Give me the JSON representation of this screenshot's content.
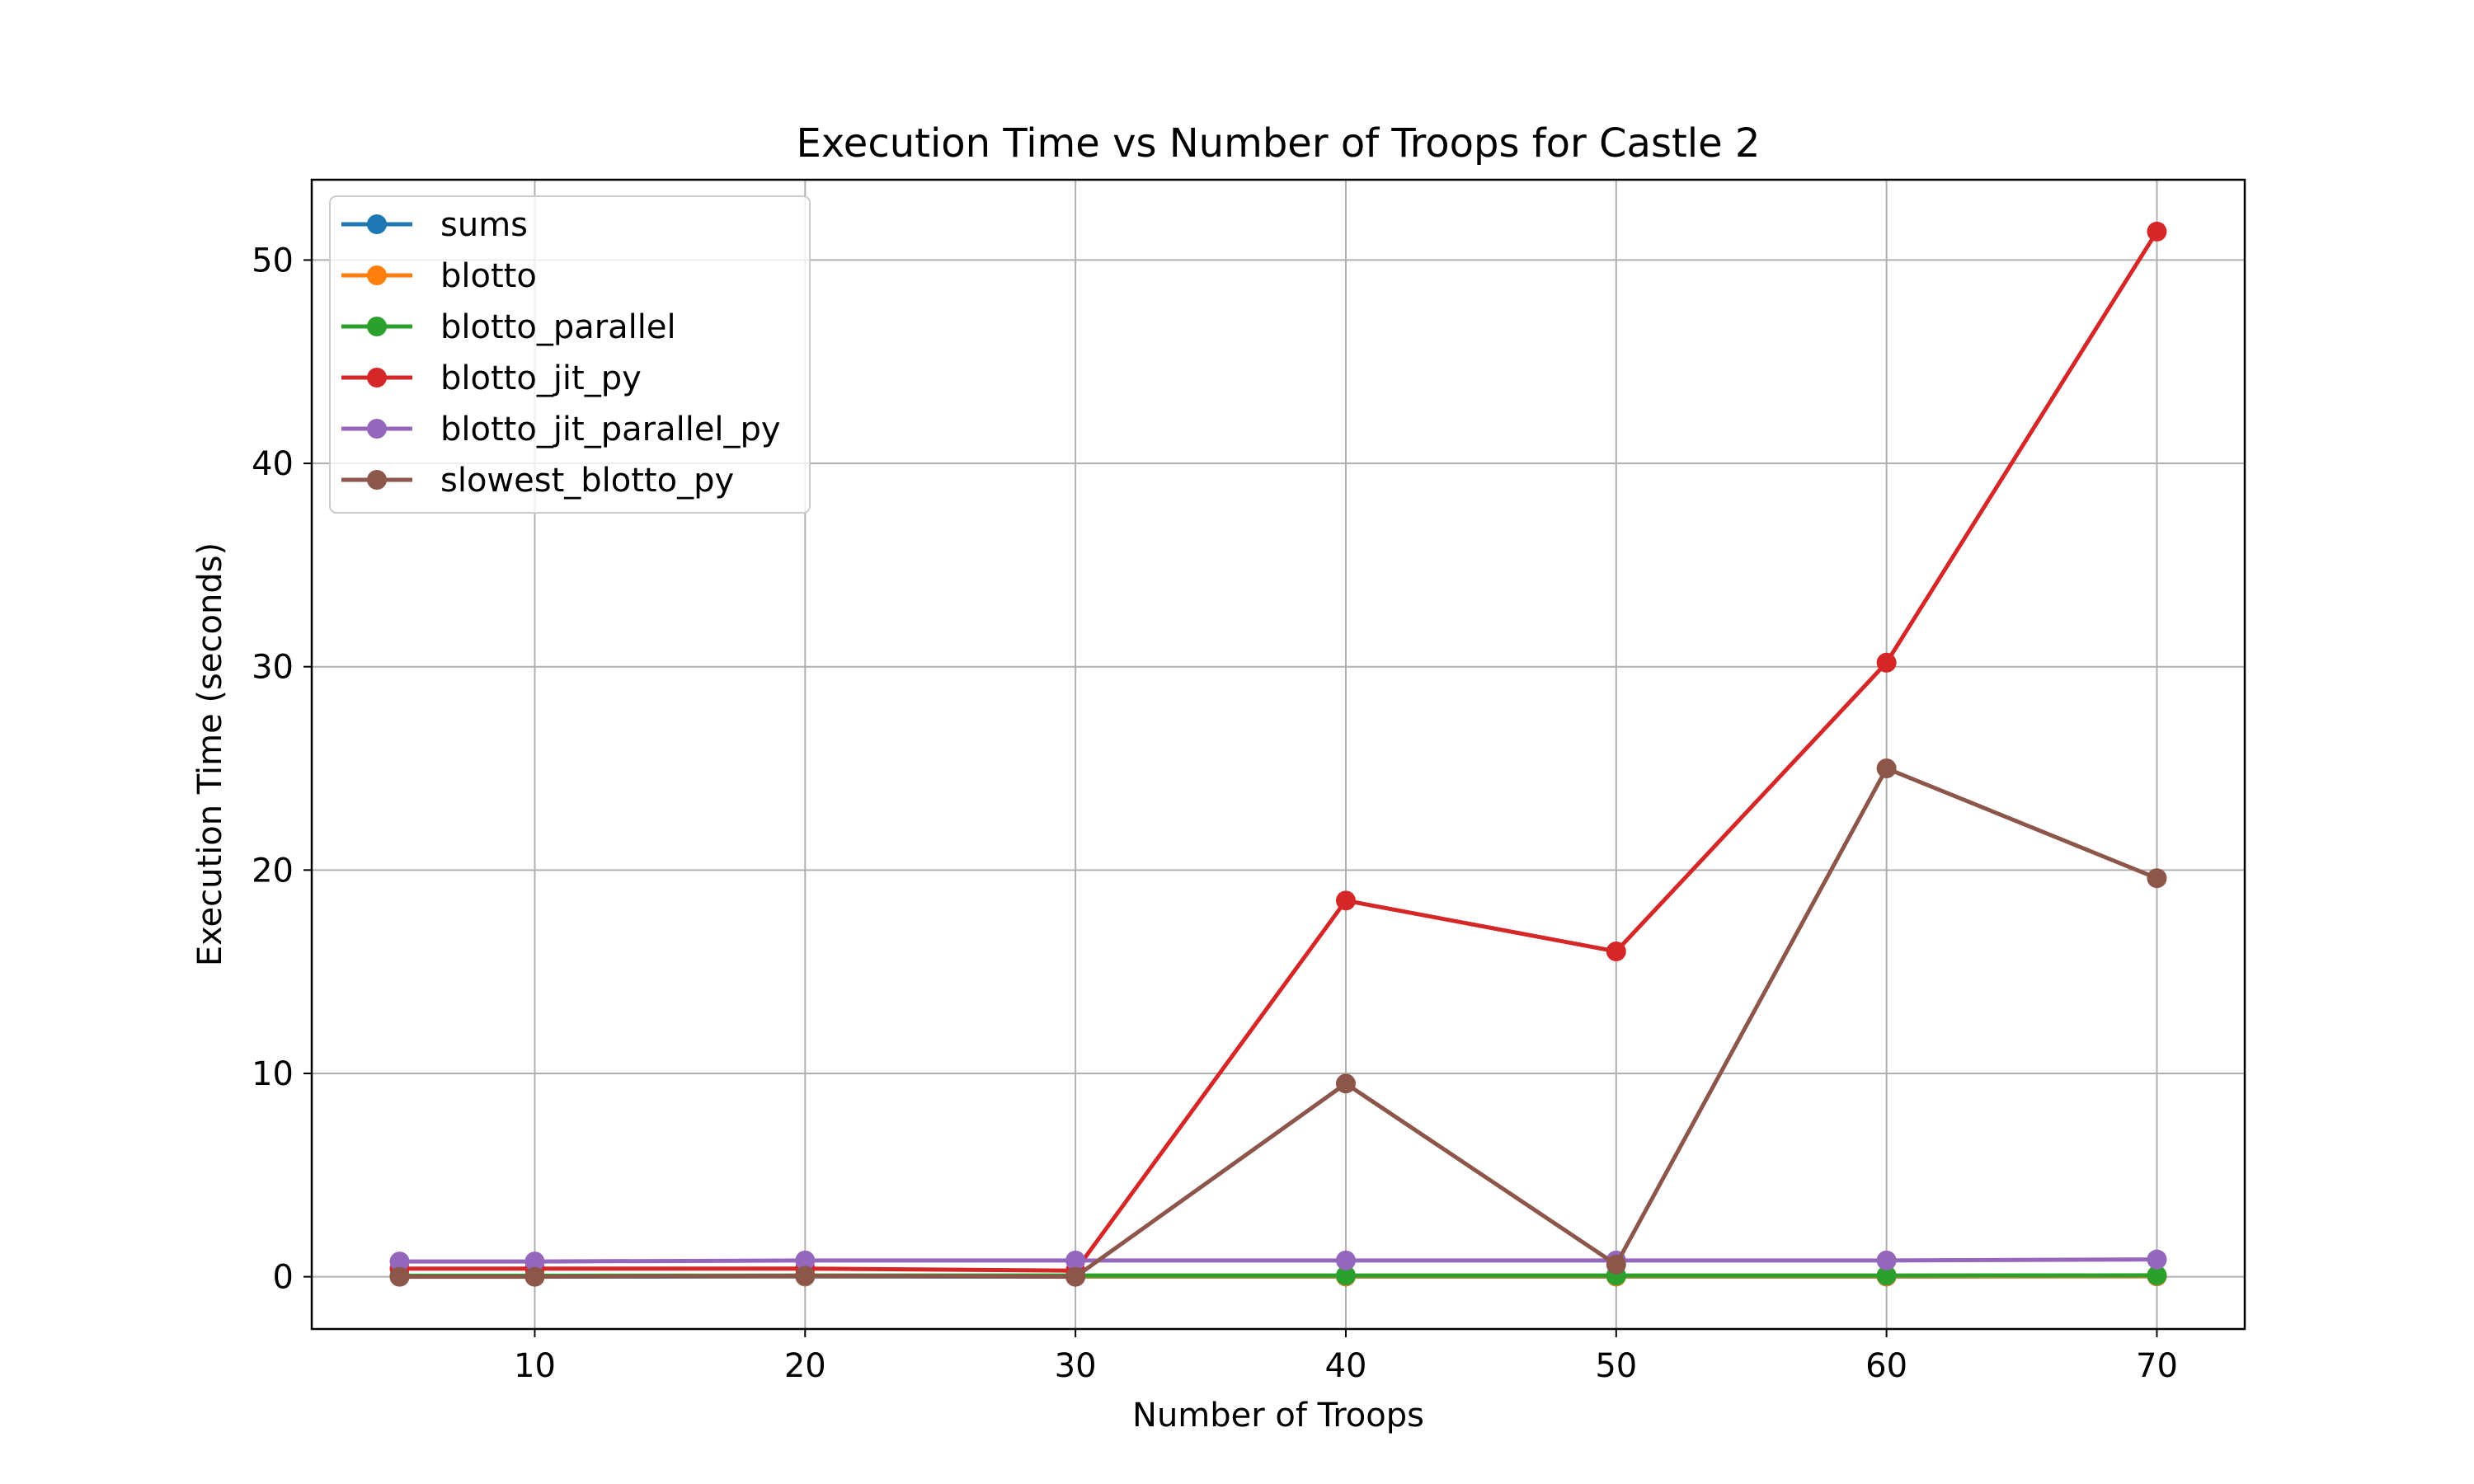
{
  "chart_data": {
    "type": "line",
    "title": "Execution Time vs Number of Troops for Castle 2",
    "xlabel": "Number of Troops",
    "ylabel": "Execution Time (seconds)",
    "x": [
      5,
      10,
      20,
      30,
      40,
      50,
      60,
      70
    ],
    "xlim": [
      1.75,
      73.25
    ],
    "ylim": [
      -2.57,
      53.95
    ],
    "xticks": [
      10,
      20,
      30,
      40,
      50,
      60,
      70
    ],
    "yticks": [
      0,
      10,
      20,
      30,
      40,
      50
    ],
    "grid": true,
    "legend_position": "upper-left",
    "series": [
      {
        "name": "sums",
        "color": "#1f77b4",
        "values": [
          0.01,
          0.01,
          0.01,
          0.01,
          0.01,
          0.01,
          0.01,
          0.02
        ]
      },
      {
        "name": "blotto",
        "color": "#ff7f0e",
        "values": [
          0.02,
          0.02,
          0.03,
          0.02,
          0.02,
          0.02,
          0.02,
          0.03
        ]
      },
      {
        "name": "blotto_parallel",
        "color": "#2ca02c",
        "values": [
          0.05,
          0.05,
          0.06,
          0.06,
          0.06,
          0.06,
          0.06,
          0.07
        ]
      },
      {
        "name": "blotto_jit_py",
        "color": "#d62728",
        "values": [
          0.4,
          0.4,
          0.4,
          0.3,
          18.5,
          16.0,
          30.2,
          51.4
        ]
      },
      {
        "name": "blotto_jit_parallel_py",
        "color": "#9467bd",
        "values": [
          0.75,
          0.75,
          0.8,
          0.8,
          0.8,
          0.8,
          0.8,
          0.85
        ]
      },
      {
        "name": "slowest_blotto_py",
        "color": "#8c564b",
        "values": [
          0.0,
          0.0,
          0.05,
          0.0,
          9.5,
          0.6,
          25.0,
          19.6
        ]
      }
    ]
  }
}
